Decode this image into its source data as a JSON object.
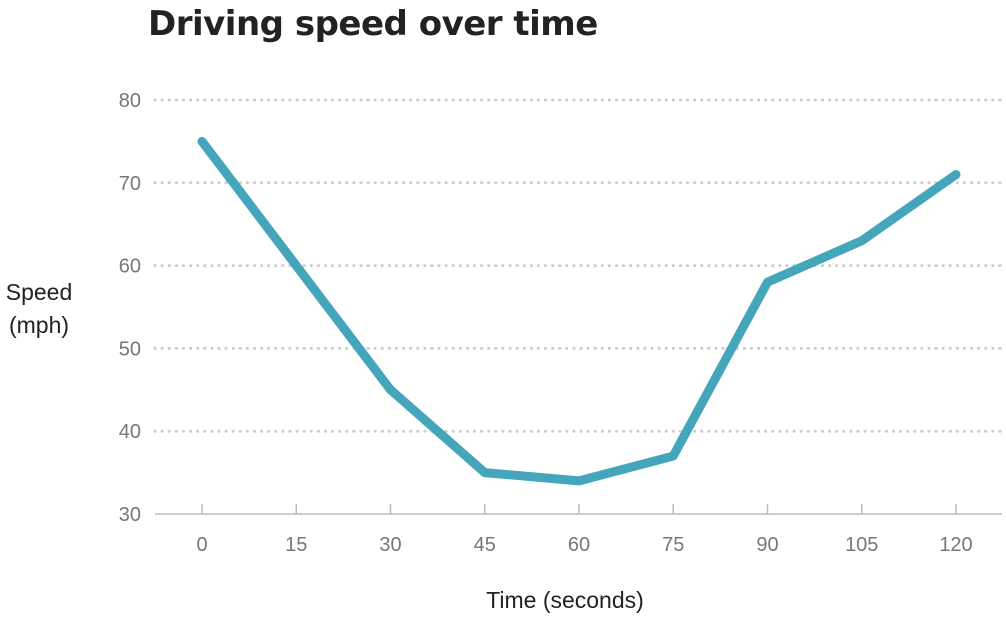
{
  "chart_data": {
    "type": "line",
    "title": "Driving speed over time",
    "xlabel": "Time (seconds)",
    "ylabel": "Speed\n(mph)",
    "x": [
      0,
      15,
      30,
      45,
      60,
      75,
      90,
      105,
      120
    ],
    "series": [
      {
        "values": [
          75,
          60,
          45,
          35,
          34,
          37,
          58,
          63,
          71
        ]
      }
    ],
    "xticks": [
      "0",
      "15",
      "30",
      "45",
      "60",
      "75",
      "90",
      "105",
      "120"
    ],
    "yticks": [
      "30",
      "40",
      "50",
      "60",
      "70",
      "80"
    ],
    "xlim": [
      0,
      120
    ],
    "ylim": [
      30,
      80
    ],
    "grid": "horizontal dotted",
    "line_color": "#45a6bb",
    "grid_color": "#cccccc",
    "tick_color": "#777777"
  }
}
